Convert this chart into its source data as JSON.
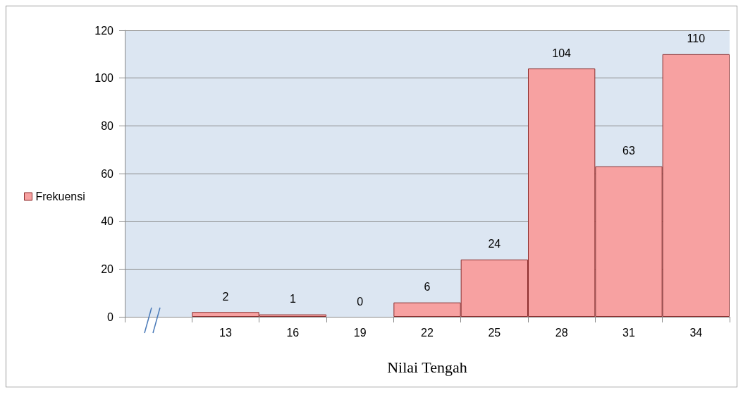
{
  "chart_data": {
    "type": "bar",
    "xlabel": "Nilai Tengah",
    "categories": [
      null,
      "13",
      "16",
      "19",
      "22",
      "25",
      "28",
      "31",
      "34"
    ],
    "series": [
      {
        "name": "Frekuensi",
        "color": "#f7a1a1",
        "values": [
          null,
          2,
          1,
          0,
          6,
          24,
          104,
          63,
          110
        ]
      }
    ],
    "ylim": [
      0,
      120
    ],
    "yticks": [
      0,
      20,
      40,
      60,
      80,
      100,
      120
    ],
    "grid": "y",
    "legend": "left",
    "data_labels": true
  }
}
